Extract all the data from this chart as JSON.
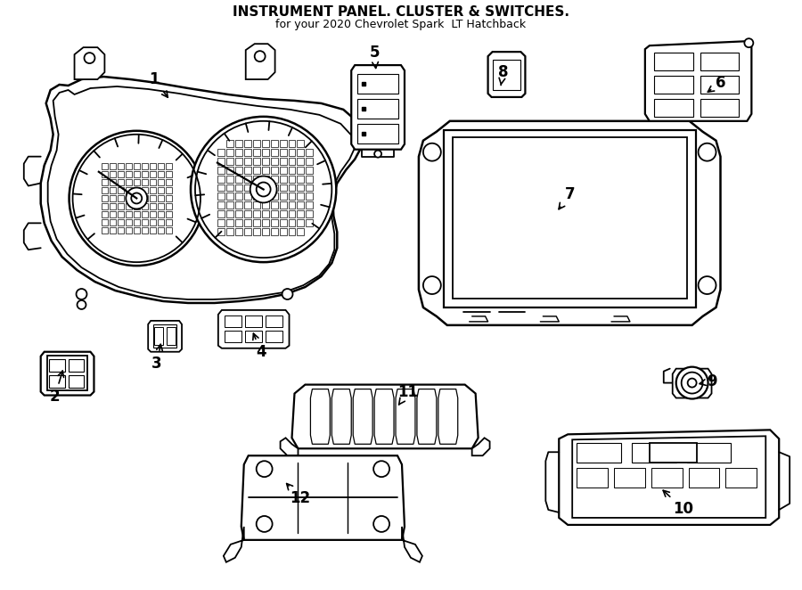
{
  "title": "INSTRUMENT PANEL. CLUSTER & SWITCHES.",
  "subtitle": "for your 2020 Chevrolet Spark  LT Hatchback",
  "bg_color": "#ffffff",
  "line_color": "#000000",
  "lw": 1.3
}
